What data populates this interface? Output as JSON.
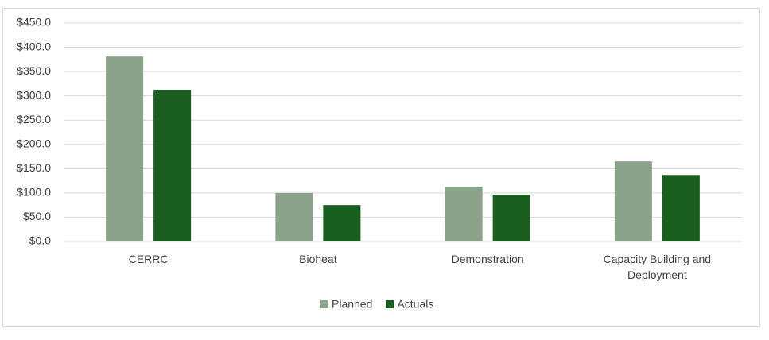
{
  "chart_data": {
    "type": "bar",
    "categories": [
      "CERRC",
      "Bioheat",
      "Demonstration",
      "Capacity Building and Deployment"
    ],
    "series": [
      {
        "name": "Planned",
        "color": "#8aa38a",
        "values": [
          381,
          100,
          113,
          165
        ]
      },
      {
        "name": "Actuals",
        "color": "#1a5e20",
        "values": [
          312.5,
          75,
          96.5,
          137
        ]
      }
    ],
    "ylim": [
      0,
      450
    ],
    "yticks": [
      {
        "value": 0,
        "label": "$0.0"
      },
      {
        "value": 50,
        "label": "$50.0"
      },
      {
        "value": 100,
        "label": "$100.0"
      },
      {
        "value": 150,
        "label": "$150.0"
      },
      {
        "value": 200,
        "label": "$200.0"
      },
      {
        "value": 250,
        "label": "$250.0"
      },
      {
        "value": 300,
        "label": "$300.0"
      },
      {
        "value": 350,
        "label": "$350.0"
      },
      {
        "value": 400,
        "label": "$400.0"
      },
      {
        "value": 450,
        "label": "$450.0"
      }
    ],
    "grid": true,
    "legend": "bottom"
  }
}
